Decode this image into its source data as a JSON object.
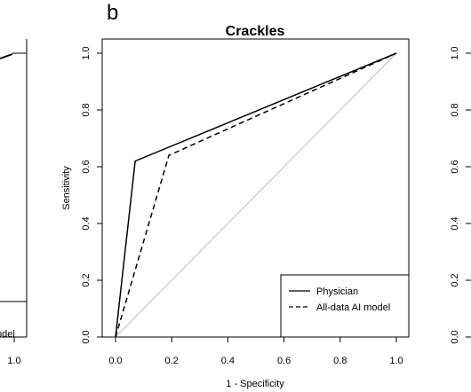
{
  "panel_letter": "b",
  "left_fragment": {
    "legend_text": "odel",
    "xtick": "1.0"
  },
  "right_fragment": {
    "ytick_labels": [
      "0.0",
      "0.2",
      "0.4",
      "0.6",
      "0.8",
      "1.0"
    ]
  },
  "chart_data": {
    "type": "line",
    "title": "Crackles",
    "xlabel": "1 - Specificity",
    "ylabel": "Sensitivity",
    "xlim": [
      0,
      1
    ],
    "ylim": [
      0,
      1
    ],
    "xticks": [
      "0.0",
      "0.2",
      "0.4",
      "0.6",
      "0.8",
      "1.0"
    ],
    "yticks": [
      "0.0",
      "0.2",
      "0.4",
      "0.6",
      "0.8",
      "1.0"
    ],
    "grid": false,
    "legend_position": "bottom-right",
    "reference_line": {
      "x": [
        0,
        1
      ],
      "y": [
        0,
        1
      ],
      "color": "#bdbdbd"
    },
    "series": [
      {
        "name": "Physician",
        "style": "solid",
        "color": "#000000",
        "x": [
          0,
          0.07,
          1
        ],
        "y": [
          0,
          0.62,
          1
        ]
      },
      {
        "name": "All-data AI model",
        "style": "dashed",
        "color": "#000000",
        "x": [
          0,
          0.19,
          1
        ],
        "y": [
          0,
          0.64,
          1
        ]
      }
    ]
  }
}
